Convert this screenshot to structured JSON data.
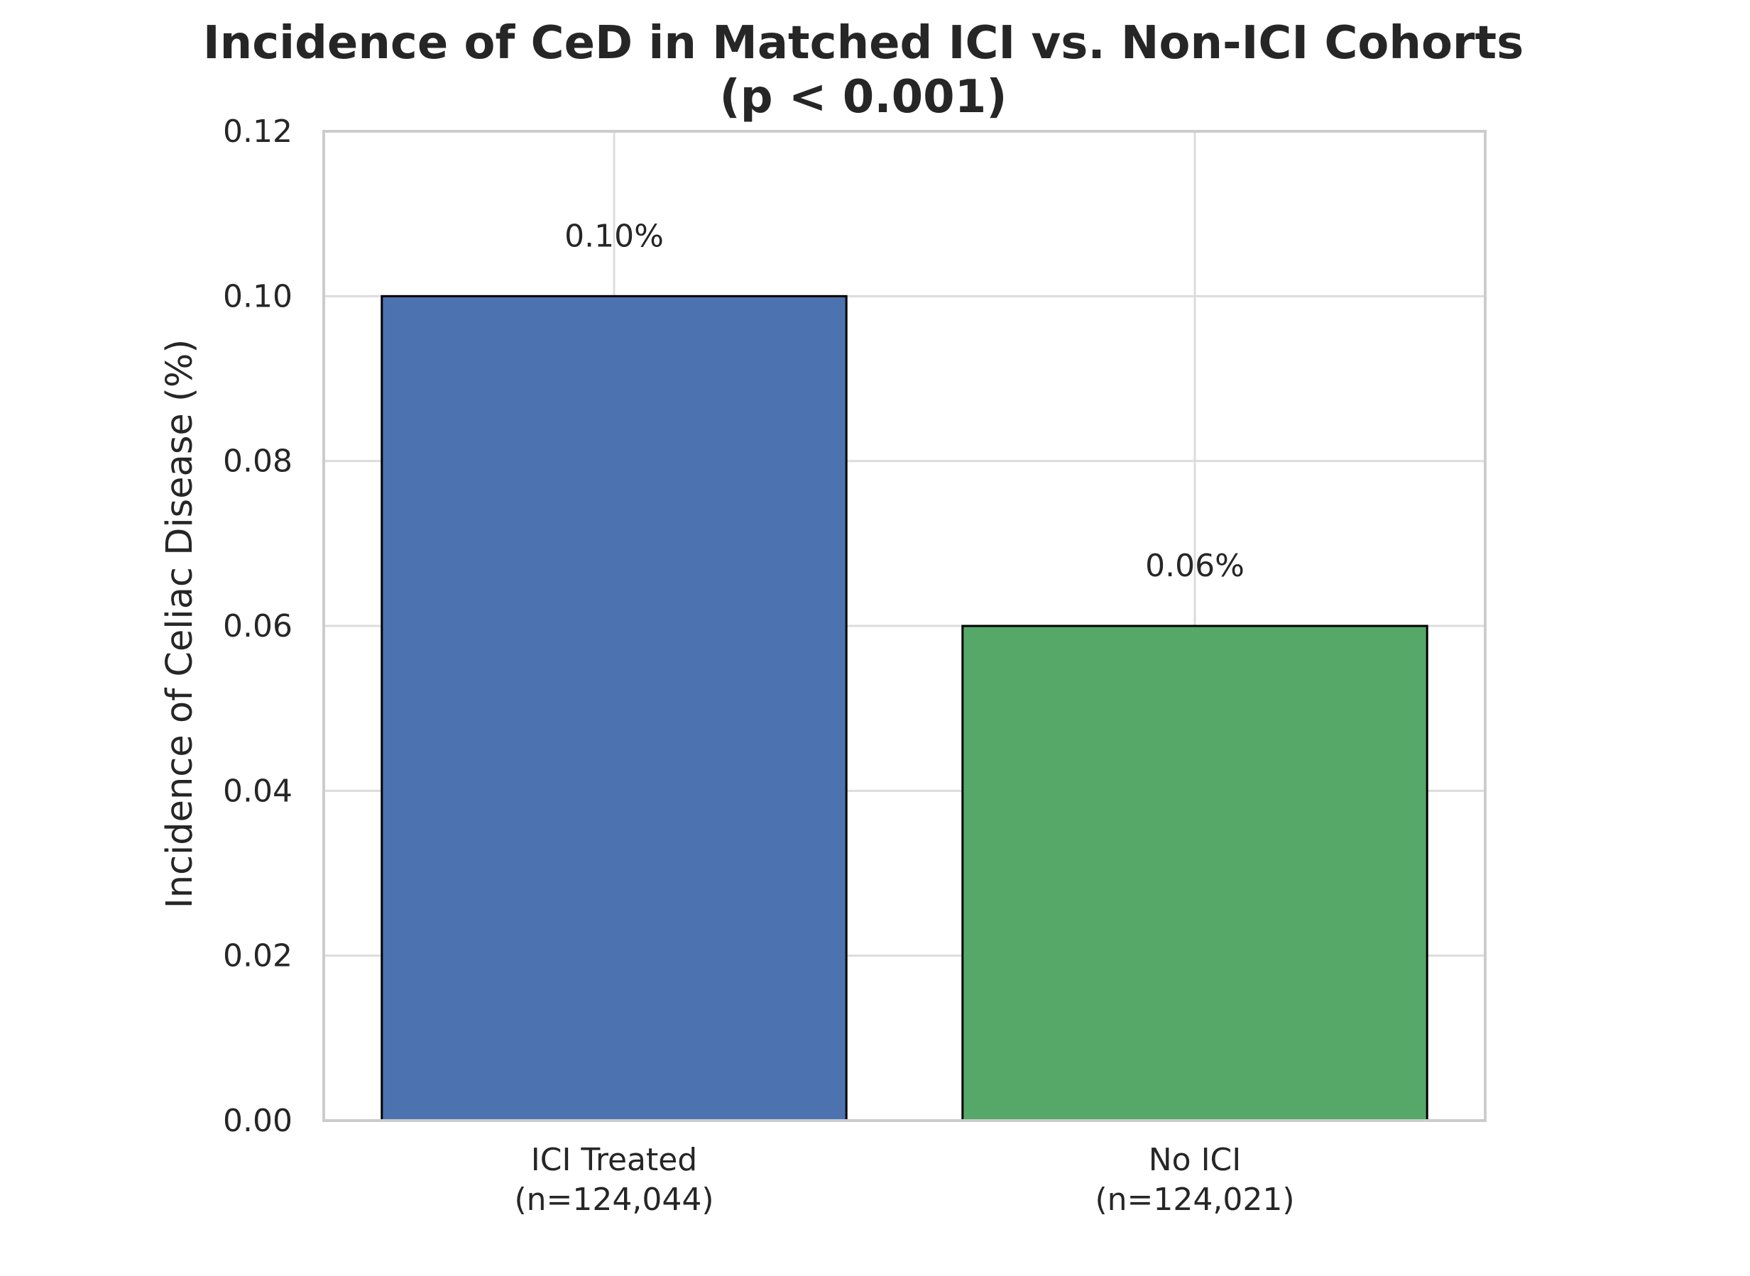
{
  "chart_data": {
    "type": "bar",
    "title_lines": [
      "Incidence of CeD in Matched ICI vs. Non-ICI Cohorts",
      "(p < 0.001)"
    ],
    "xlabel": "",
    "ylabel": "Incidence of Celiac Disease (%)",
    "categories": [
      [
        "ICI Treated",
        "(n=124,044)"
      ],
      [
        "No ICI",
        "(n=124,021)"
      ]
    ],
    "values": [
      0.1,
      0.06
    ],
    "value_labels": [
      "0.10%",
      "0.06%"
    ],
    "bar_colors": [
      "#4c72b0",
      "#55a868"
    ],
    "bar_edge_color": "#000000",
    "ylim": [
      0,
      0.12
    ],
    "yticks": [
      0.0,
      0.02,
      0.04,
      0.06,
      0.08,
      0.1,
      0.12
    ],
    "ytick_labels": [
      "0.00",
      "0.02",
      "0.04",
      "0.06",
      "0.08",
      "0.10",
      "0.12"
    ],
    "grid": true,
    "legend": null
  }
}
